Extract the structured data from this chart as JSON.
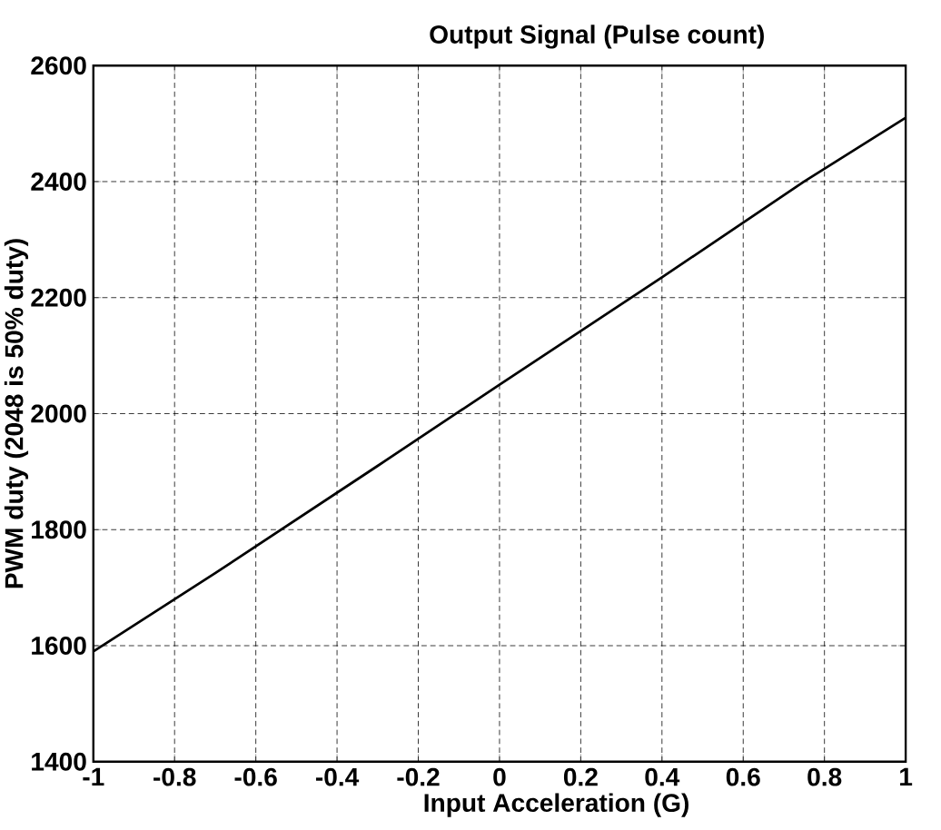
{
  "chart_data": {
    "type": "line",
    "title": "Output Signal (Pulse count)",
    "xlabel": "Input Acceleration (G)",
    "ylabel": "PWM duty (2048 is 50% duty)",
    "x": [
      -1,
      -0.7,
      -0.3,
      0,
      0.4,
      0.75,
      1
    ],
    "series": [
      {
        "color": "#000000",
        "values": [
          1590,
          1725,
          1910,
          2050,
          2235,
          2400,
          2510
        ]
      }
    ],
    "xlim": [
      -1,
      1
    ],
    "ylim": [
      1400,
      2600
    ],
    "xticks": [
      -1,
      -0.8,
      -0.6,
      -0.4,
      -0.2,
      0,
      0.2,
      0.4,
      0.6,
      0.8,
      1
    ],
    "yticks": [
      1400,
      1600,
      1800,
      2000,
      2200,
      2400,
      2600
    ],
    "grid": true,
    "marker": "none",
    "line_style": "solid"
  }
}
